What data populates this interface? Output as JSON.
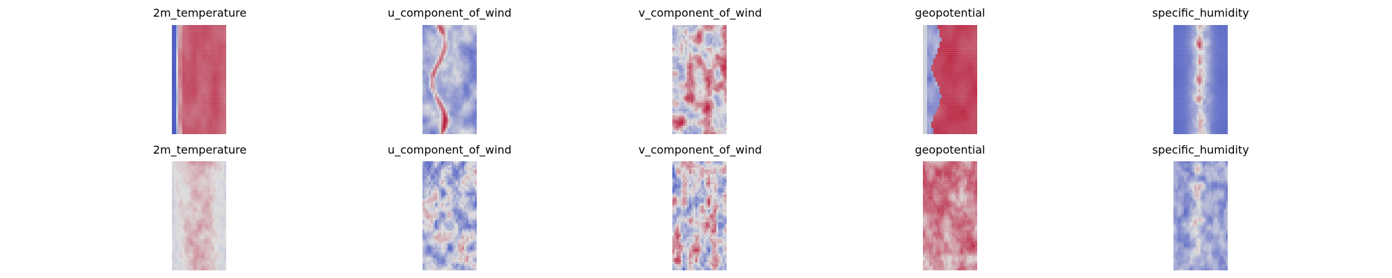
{
  "chart_data": [
    {
      "type": "heatmap",
      "title": "2m_temperature",
      "row": 1,
      "col": 1
    },
    {
      "type": "heatmap",
      "title": "u_component_of_wind",
      "row": 1,
      "col": 2
    },
    {
      "type": "heatmap",
      "title": "v_component_of_wind",
      "row": 1,
      "col": 3
    },
    {
      "type": "heatmap",
      "title": "geopotential",
      "row": 1,
      "col": 4
    },
    {
      "type": "heatmap",
      "title": "specific_humidity",
      "row": 1,
      "col": 5
    },
    {
      "type": "heatmap",
      "title": "2m_temperature",
      "row": 2,
      "col": 1
    },
    {
      "type": "heatmap",
      "title": "u_component_of_wind",
      "row": 2,
      "col": 2
    },
    {
      "type": "heatmap",
      "title": "v_component_of_wind",
      "row": 2,
      "col": 3
    },
    {
      "type": "heatmap",
      "title": "geopotential",
      "row": 2,
      "col": 4
    },
    {
      "type": "heatmap",
      "title": "specific_humidity",
      "row": 2,
      "col": 5
    }
  ],
  "colormap": {
    "name": "coolwarm",
    "low": "#3b4cc0",
    "mid": "#dddddd",
    "high": "#b40426"
  }
}
